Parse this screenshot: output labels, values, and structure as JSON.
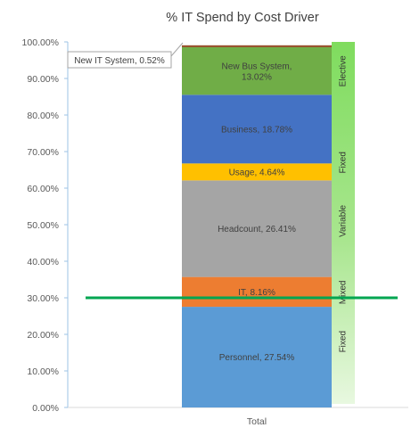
{
  "chart_data": {
    "type": "bar",
    "stacked": true,
    "title": "% IT Spend by Cost Driver",
    "categories": [
      "Total"
    ],
    "ylim": [
      0,
      1
    ],
    "yticks": [
      "0.00%",
      "10.00%",
      "20.00%",
      "30.00%",
      "40.00%",
      "50.00%",
      "60.00%",
      "70.00%",
      "80.00%",
      "90.00%",
      "100.00%"
    ],
    "grid": false,
    "series": [
      {
        "name": "Personnel",
        "label": "Personnel, 27.54%",
        "value": 0.2754,
        "color": "#5b9bd5",
        "text_color": "#404040"
      },
      {
        "name": "IT",
        "label": "IT, 8.16%",
        "value": 0.0816,
        "color": "#ed7d31",
        "text_color": "#404040"
      },
      {
        "name": "Headcount",
        "label": "Headcount, 26.41%",
        "value": 0.2641,
        "color": "#a5a5a5",
        "text_color": "#404040"
      },
      {
        "name": "Usage",
        "label": "Usage, 4.64%",
        "value": 0.0464,
        "color": "#ffc000",
        "text_color": "#404040"
      },
      {
        "name": "Business",
        "label": "Business, 18.78%",
        "value": 0.1878,
        "color": "#4472c4",
        "text_color": "#404040"
      },
      {
        "name": "New Bus System",
        "label_lines": [
          "New Bus System,",
          "13.02%"
        ],
        "value": 0.1302,
        "color": "#70ad47",
        "text_color": "#404040"
      },
      {
        "name": "New IT System",
        "label": "New IT System, 0.52%",
        "value": 0.0052,
        "color": "#954f2a",
        "text_color": "#404040"
      }
    ],
    "callout": {
      "text": "New IT System, 0.52%"
    },
    "side_labels": [
      {
        "text": "Fixed",
        "position": 0.18
      },
      {
        "text": "Mixed",
        "position": 0.315
      },
      {
        "text": "Variable",
        "position": 0.51
      },
      {
        "text": "Fixed",
        "position": 0.67
      },
      {
        "text": "Elective",
        "position": 0.92
      }
    ],
    "threshold_line": {
      "value": 0.3,
      "color": "#00a651"
    },
    "colors": {
      "axis": "#9dc3e6",
      "tick_text": "#595959",
      "side_strip_top": "#7fdc5e",
      "side_strip_bottom": "#e8f8e0"
    }
  }
}
